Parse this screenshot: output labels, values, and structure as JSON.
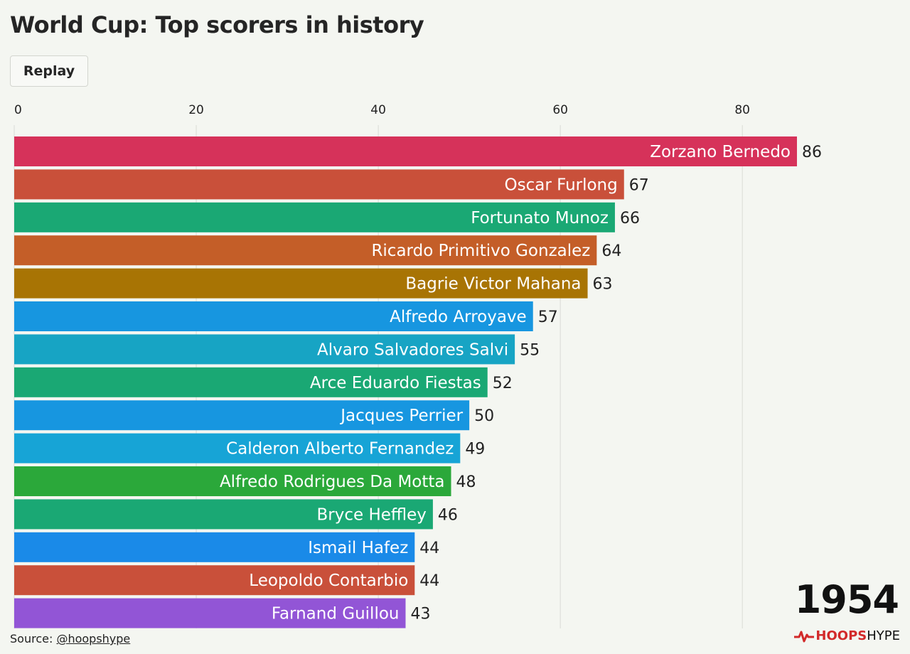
{
  "header": {
    "title": "World Cup: Top scorers in history",
    "replay_label": "Replay"
  },
  "chart_data": {
    "type": "bar",
    "orientation": "horizontal",
    "title": "World Cup: Top scorers in history",
    "xlim": [
      0,
      86
    ],
    "x_ticks": [
      0,
      20,
      40,
      60,
      80
    ],
    "grid": true,
    "categories": [
      "Zorzano Bernedo",
      "Oscar Furlong",
      "Fortunato Munoz",
      "Ricardo Primitivo Gonzalez",
      "Bagrie Victor Mahana",
      "Alfredo Arroyave",
      "Alvaro Salvadores Salvi",
      "Arce Eduardo Fiestas",
      "Jacques Perrier",
      "Calderon Alberto Fernandez",
      "Alfredo Rodrigues Da Motta",
      "Bryce Heffley",
      "Ismail Hafez",
      "Leopoldo Contarbio",
      "Farnand Guillou"
    ],
    "values": [
      86,
      67,
      66,
      64,
      63,
      57,
      55,
      52,
      50,
      49,
      48,
      46,
      44,
      44,
      43
    ],
    "colors": [
      "#d6325a",
      "#c9503a",
      "#1aa874",
      "#c45e28",
      "#a87404",
      "#1796e0",
      "#17a4c4",
      "#1aa874",
      "#1796e0",
      "#17a4d6",
      "#2ba83a",
      "#1aa874",
      "#1a8ae8",
      "#c9503a",
      "#9255d6"
    ],
    "year": "1954"
  },
  "footer": {
    "source_prefix": "Source: ",
    "source_link": "@hoopshype",
    "logo_bold": "HOOPS",
    "logo_light": "HYPE"
  },
  "colors": {
    "background": "#f4f6f1",
    "grid": "#d9dbd6",
    "logo_accent": "#d22a2a"
  }
}
